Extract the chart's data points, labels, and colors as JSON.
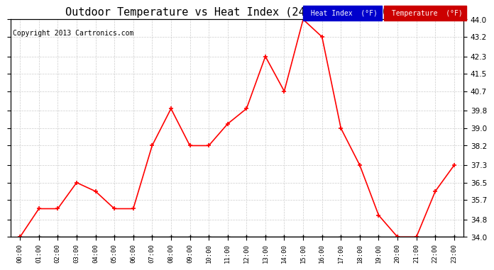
{
  "title": "Outdoor Temperature vs Heat Index (24 Hours) 20130128",
  "copyright": "Copyright 2013 Cartronics.com",
  "hours": [
    "00:00",
    "01:00",
    "02:00",
    "03:00",
    "04:00",
    "05:00",
    "06:00",
    "07:00",
    "08:00",
    "09:00",
    "10:00",
    "11:00",
    "12:00",
    "13:00",
    "14:00",
    "15:00",
    "16:00",
    "17:00",
    "18:00",
    "19:00",
    "20:00",
    "21:00",
    "22:00",
    "23:00"
  ],
  "temperature": [
    34.0,
    35.3,
    35.3,
    36.5,
    36.1,
    35.3,
    35.3,
    38.2,
    39.9,
    38.2,
    38.2,
    39.2,
    39.9,
    42.3,
    40.7,
    44.0,
    43.2,
    39.0,
    37.3,
    35.0,
    34.0,
    34.0,
    36.1,
    37.3
  ],
  "heat_index": [
    34.0,
    34.0,
    34.0,
    34.0,
    34.0,
    34.0,
    34.0,
    34.0,
    34.0,
    34.0,
    34.0,
    34.0,
    34.0,
    34.0,
    34.0,
    34.0,
    34.0,
    34.0,
    34.0,
    34.0,
    34.0,
    34.0,
    34.0,
    34.0
  ],
  "temp_color": "#ff0000",
  "heat_index_color": "#000000",
  "ylim_min": 34.0,
  "ylim_max": 44.0,
  "yticks": [
    34.0,
    34.8,
    35.7,
    36.5,
    37.3,
    38.2,
    39.0,
    39.8,
    40.7,
    41.5,
    42.3,
    43.2,
    44.0
  ],
  "bg_color": "#ffffff",
  "grid_color": "#cccccc",
  "legend_heat_bg": "#0000cc",
  "legend_temp_bg": "#cc0000",
  "title_fontsize": 11,
  "copyright_fontsize": 7,
  "tick_fontsize": 7.5,
  "xtick_fontsize": 6.5
}
